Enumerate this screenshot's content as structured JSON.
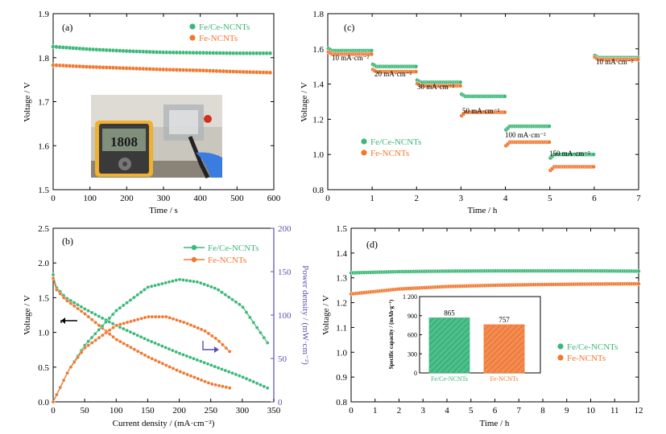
{
  "chart_data": [
    {
      "type": "scatter",
      "panel_label": "(a)",
      "xlabel": "Time / s",
      "ylabel": "Voltage / V",
      "xlim": [
        0,
        600
      ],
      "ylim": [
        1.5,
        1.9
      ],
      "xticks": [
        0,
        100,
        200,
        300,
        400,
        500,
        600
      ],
      "yticks": [
        1.5,
        1.6,
        1.7,
        1.8,
        1.9
      ],
      "legend_position": "top-right",
      "series": [
        {
          "name": "Fe/Ce-NCNTs",
          "color": "#3cb878",
          "x": [
            0,
            100,
            200,
            300,
            400,
            500,
            590
          ],
          "y": [
            1.825,
            1.819,
            1.815,
            1.812,
            1.811,
            1.81,
            1.81
          ]
        },
        {
          "name": "Fe-NCNTs",
          "color": "#f07830",
          "x": [
            0,
            100,
            200,
            300,
            400,
            500,
            590
          ],
          "y": [
            1.783,
            1.779,
            1.776,
            1.773,
            1.771,
            1.768,
            1.766
          ]
        }
      ],
      "inset_photo": {
        "meter_reading": "1808"
      }
    },
    {
      "type": "line",
      "panel_label": "(b)",
      "xlabel": "Current density / (mA·cm⁻²)",
      "ylabel": "Voltage / V",
      "y2label": "Power density / (mW·cm⁻²)",
      "xlim": [
        0,
        350
      ],
      "ylim": [
        0,
        2.5
      ],
      "y2lim": [
        0,
        200
      ],
      "xticks": [
        0,
        50,
        100,
        150,
        200,
        250,
        300,
        350
      ],
      "yticks": [
        0.0,
        0.5,
        1.0,
        1.5,
        2.0,
        2.5
      ],
      "y2ticks": [
        0,
        50,
        100,
        150,
        200
      ],
      "legend_position": "top-right",
      "series": [
        {
          "name": "Fe/Ce-NCNTs",
          "axis": "left",
          "color": "#3cb878",
          "x": [
            0,
            5,
            20,
            50,
            100,
            150,
            200,
            250,
            300,
            340
          ],
          "y": [
            1.83,
            1.65,
            1.5,
            1.34,
            1.1,
            0.89,
            0.7,
            0.53,
            0.36,
            0.2
          ]
        },
        {
          "name": "Fe-NCNTs",
          "axis": "left",
          "color": "#f07830",
          "x": [
            0,
            5,
            20,
            50,
            100,
            150,
            200,
            250,
            280
          ],
          "y": [
            1.78,
            1.62,
            1.47,
            1.27,
            0.9,
            0.65,
            0.44,
            0.26,
            0.2
          ]
        },
        {
          "name": "Fe/Ce-NCNTs",
          "axis": "right",
          "color": "#3cb878",
          "x": [
            0,
            25,
            50,
            100,
            150,
            200,
            230,
            260,
            300,
            340
          ],
          "y": [
            0,
            37,
            65,
            105,
            132,
            141,
            138,
            130,
            110,
            68
          ]
        },
        {
          "name": "Fe-NCNTs",
          "axis": "right",
          "color": "#f07830",
          "x": [
            0,
            25,
            50,
            100,
            150,
            180,
            210,
            240,
            260,
            280
          ],
          "y": [
            0,
            37,
            62,
            88,
            98,
            98,
            91,
            82,
            72,
            58
          ]
        }
      ]
    },
    {
      "type": "scatter",
      "panel_label": "(c)",
      "xlabel": "Time / h",
      "ylabel": "Voltage / V",
      "xlim": [
        0,
        7
      ],
      "ylim": [
        0.8,
        1.8
      ],
      "xticks": [
        0,
        1,
        2,
        3,
        4,
        5,
        6,
        7
      ],
      "yticks": [
        0.8,
        1.0,
        1.2,
        1.4,
        1.6,
        1.8
      ],
      "legend_position": "center-left",
      "rate_labels": [
        "10 mA·cm⁻²",
        "20 mA·cm⁻²",
        "30 mA·cm⁻²",
        "50 mA·cm⁻²",
        "100 mA·cm⁻²",
        "150 mA·cm⁻²",
        "10 mA·cm⁻²"
      ],
      "series": [
        {
          "name": "Fe/Ce-NCNTs",
          "color": "#3cb878",
          "segments": [
            [
              0,
              1,
              1.59
            ],
            [
              1,
              2,
              1.5
            ],
            [
              2,
              3,
              1.41
            ],
            [
              3,
              4,
              1.33
            ],
            [
              4,
              5,
              1.16
            ],
            [
              5,
              6,
              1.0
            ],
            [
              6,
              7,
              1.55
            ]
          ]
        },
        {
          "name": "Fe-NCNTs",
          "color": "#f07830",
          "segments": [
            [
              0,
              1,
              1.57
            ],
            [
              1,
              2,
              1.47
            ],
            [
              2,
              3,
              1.39
            ],
            [
              3,
              4,
              1.24
            ],
            [
              4,
              5,
              1.07
            ],
            [
              5,
              6,
              0.93
            ],
            [
              6,
              7,
              1.54
            ]
          ]
        }
      ]
    },
    {
      "type": "scatter",
      "panel_label": "(d)",
      "xlabel": "Time / h",
      "ylabel": "Voltage / V",
      "xlim": [
        0,
        12
      ],
      "ylim": [
        0.8,
        1.5
      ],
      "xticks": [
        0,
        1,
        2,
        3,
        4,
        5,
        6,
        7,
        8,
        9,
        10,
        11,
        12
      ],
      "yticks": [
        0.8,
        0.9,
        1.0,
        1.1,
        1.2,
        1.3,
        1.4,
        1.5
      ],
      "legend_position": "bottom-right",
      "series": [
        {
          "name": "Fe/Ce-NCNTs",
          "color": "#3cb878",
          "x": [
            0,
            2,
            4,
            6,
            8,
            10,
            12
          ],
          "y": [
            1.32,
            1.325,
            1.327,
            1.328,
            1.328,
            1.328,
            1.327
          ]
        },
        {
          "name": "Fe-NCNTs",
          "color": "#f07830",
          "x": [
            0,
            2,
            4,
            6,
            8,
            10,
            12
          ],
          "y": [
            1.235,
            1.255,
            1.265,
            1.27,
            1.273,
            1.275,
            1.276
          ]
        }
      ],
      "inset": {
        "type": "bar",
        "ylabel": "Specific capacity / (mAh·g⁻¹)",
        "ylim": [
          0,
          1200
        ],
        "yticks": [
          "0",
          "300",
          "600",
          "900",
          "1 200"
        ],
        "categories": [
          "Fe/Ce-NCNTs",
          "Fe-NCNTs"
        ],
        "values": [
          865,
          757
        ],
        "colors": [
          "#3cb878",
          "#f07830"
        ]
      }
    }
  ]
}
